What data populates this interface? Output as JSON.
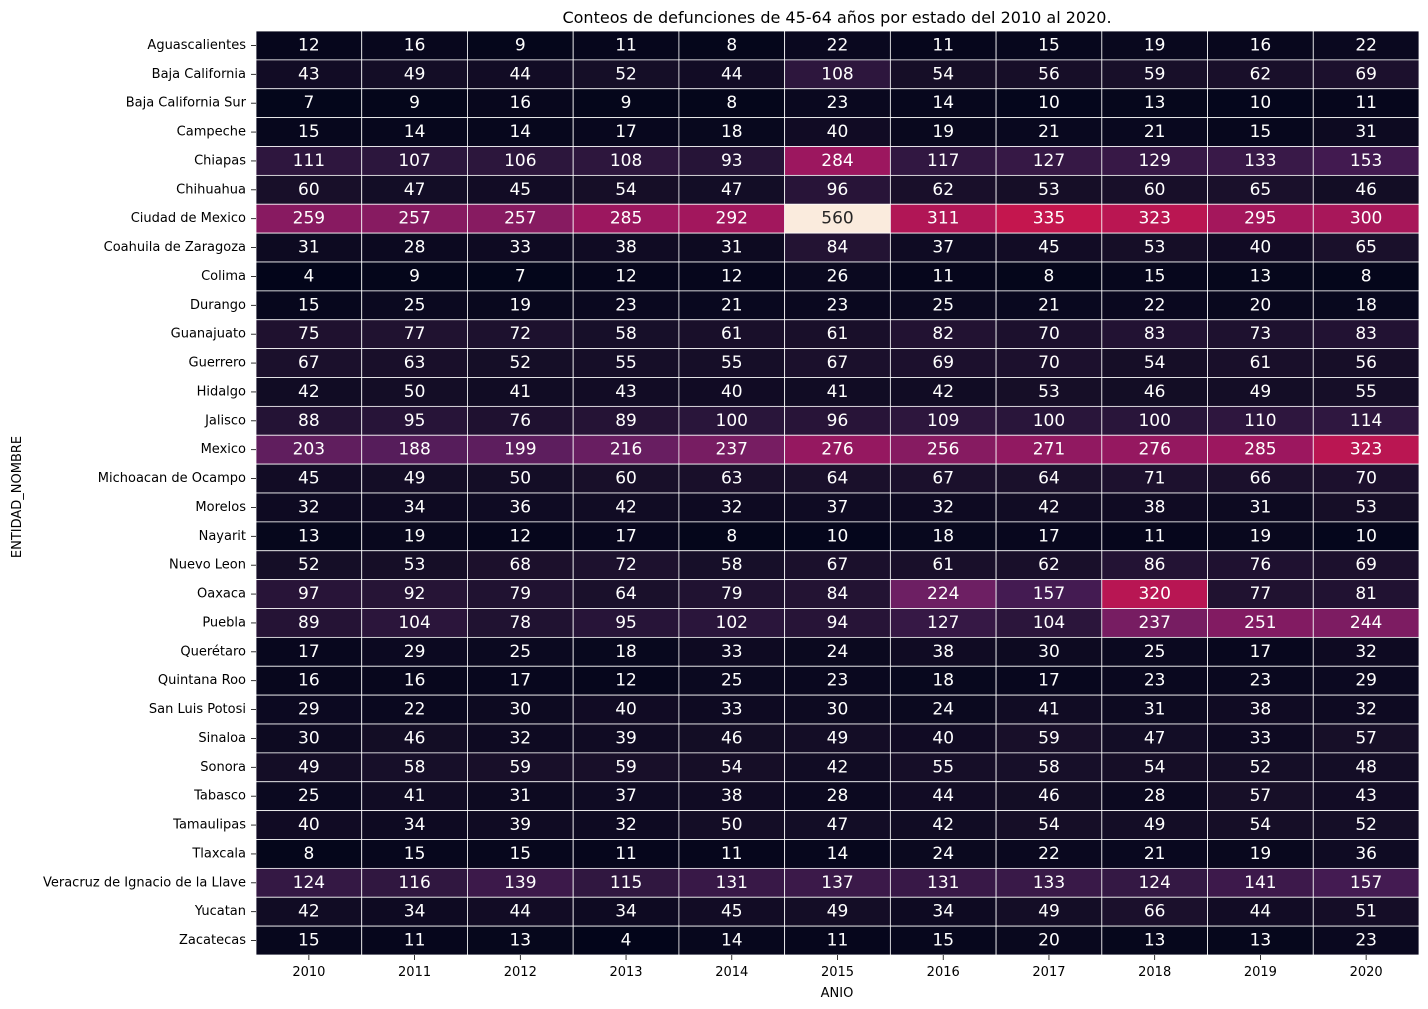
{
  "chart_data": {
    "type": "heatmap",
    "title": "Conteos de defunciones de 45-64 años por estado del 2010 al 2020.",
    "xlabel": "ANIO",
    "ylabel": "ENTIDAD_NOMBRE",
    "colormap": "rocket",
    "vmin": 4,
    "vmax": 560,
    "x": [
      "2010",
      "2011",
      "2012",
      "2013",
      "2014",
      "2015",
      "2016",
      "2017",
      "2018",
      "2019",
      "2020"
    ],
    "y": [
      "Aguascalientes",
      "Baja California",
      "Baja California Sur",
      "Campeche",
      "Chiapas",
      "Chihuahua",
      "Ciudad de Mexico",
      "Coahuila de Zaragoza",
      "Colima",
      "Durango",
      "Guanajuato",
      "Guerrero",
      "Hidalgo",
      "Jalisco",
      "Mexico",
      "Michoacan de Ocampo",
      "Morelos",
      "Nayarit",
      "Nuevo Leon",
      "Oaxaca",
      "Puebla",
      "Querétaro",
      "Quintana Roo",
      "San Luis Potosi",
      "Sinaloa",
      "Sonora",
      "Tabasco",
      "Tamaulipas",
      "Tlaxcala",
      "Veracruz de Ignacio de la Llave",
      "Yucatan",
      "Zacatecas"
    ],
    "values": [
      [
        12,
        16,
        9,
        11,
        8,
        22,
        11,
        15,
        19,
        16,
        22
      ],
      [
        43,
        49,
        44,
        52,
        44,
        108,
        54,
        56,
        59,
        62,
        69
      ],
      [
        7,
        9,
        16,
        9,
        8,
        23,
        14,
        10,
        13,
        10,
        11
      ],
      [
        15,
        14,
        14,
        17,
        18,
        40,
        19,
        21,
        21,
        15,
        31
      ],
      [
        111,
        107,
        106,
        108,
        93,
        284,
        117,
        127,
        129,
        133,
        153
      ],
      [
        60,
        47,
        45,
        54,
        47,
        96,
        62,
        53,
        60,
        65,
        46
      ],
      [
        259,
        257,
        257,
        285,
        292,
        560,
        311,
        335,
        323,
        295,
        300
      ],
      [
        31,
        28,
        33,
        38,
        31,
        84,
        37,
        45,
        53,
        40,
        65
      ],
      [
        4,
        9,
        7,
        12,
        12,
        26,
        11,
        8,
        15,
        13,
        8
      ],
      [
        15,
        25,
        19,
        23,
        21,
        23,
        25,
        21,
        22,
        20,
        18
      ],
      [
        75,
        77,
        72,
        58,
        61,
        61,
        82,
        70,
        83,
        73,
        83
      ],
      [
        67,
        63,
        52,
        55,
        55,
        67,
        69,
        70,
        54,
        61,
        56
      ],
      [
        42,
        50,
        41,
        43,
        40,
        41,
        42,
        53,
        46,
        49,
        55
      ],
      [
        88,
        95,
        76,
        89,
        100,
        96,
        109,
        100,
        100,
        110,
        114
      ],
      [
        203,
        188,
        199,
        216,
        237,
        276,
        256,
        271,
        276,
        285,
        323
      ],
      [
        45,
        49,
        50,
        60,
        63,
        64,
        67,
        64,
        71,
        66,
        70
      ],
      [
        32,
        34,
        36,
        42,
        32,
        37,
        32,
        42,
        38,
        31,
        53
      ],
      [
        13,
        19,
        12,
        17,
        8,
        10,
        18,
        17,
        11,
        19,
        10
      ],
      [
        52,
        53,
        68,
        72,
        58,
        67,
        61,
        62,
        86,
        76,
        69
      ],
      [
        97,
        92,
        79,
        64,
        79,
        84,
        224,
        157,
        320,
        77,
        81
      ],
      [
        89,
        104,
        78,
        95,
        102,
        94,
        127,
        104,
        237,
        251,
        244
      ],
      [
        17,
        29,
        25,
        18,
        33,
        24,
        38,
        30,
        25,
        17,
        32
      ],
      [
        16,
        16,
        17,
        12,
        25,
        23,
        18,
        17,
        23,
        23,
        29
      ],
      [
        29,
        22,
        30,
        40,
        33,
        30,
        24,
        41,
        31,
        38,
        32
      ],
      [
        30,
        46,
        32,
        39,
        46,
        49,
        40,
        59,
        47,
        33,
        57
      ],
      [
        49,
        58,
        59,
        59,
        54,
        42,
        55,
        58,
        54,
        52,
        48
      ],
      [
        25,
        41,
        31,
        37,
        38,
        28,
        44,
        46,
        28,
        57,
        43
      ],
      [
        40,
        34,
        39,
        32,
        50,
        47,
        42,
        54,
        49,
        54,
        52
      ],
      [
        8,
        15,
        15,
        11,
        11,
        14,
        24,
        22,
        21,
        19,
        36
      ],
      [
        124,
        116,
        139,
        115,
        131,
        137,
        131,
        133,
        124,
        141,
        157
      ],
      [
        42,
        34,
        44,
        34,
        45,
        49,
        34,
        49,
        66,
        44,
        51
      ],
      [
        15,
        11,
        13,
        4,
        14,
        11,
        15,
        20,
        13,
        13,
        23
      ]
    ]
  }
}
